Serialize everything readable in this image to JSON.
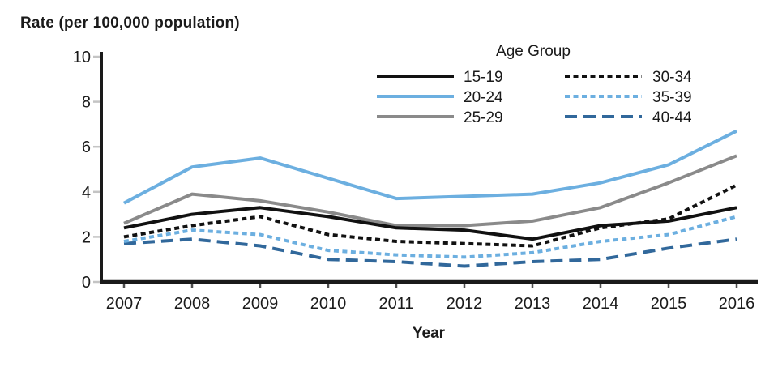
{
  "chart_data": {
    "type": "line",
    "title": "Rate (per 100,000 population)",
    "xlabel": "Year",
    "ylabel": "Rate (per 100,000 population)",
    "legend_title": "Age Group",
    "legend_position": "top-right, two columns, no box",
    "grid": false,
    "x": [
      2007,
      2008,
      2009,
      2010,
      2011,
      2012,
      2013,
      2014,
      2015,
      2016
    ],
    "yticks": [
      0,
      2,
      4,
      6,
      8,
      10
    ],
    "ylim": [
      0,
      10
    ],
    "series": [
      {
        "name": "15-19",
        "color": "#111111",
        "style": "solid",
        "values": [
          2.4,
          3.0,
          3.3,
          2.9,
          2.4,
          2.3,
          1.9,
          2.5,
          2.7,
          3.3
        ]
      },
      {
        "name": "20-24",
        "color": "#6CAFE0",
        "style": "solid",
        "values": [
          3.5,
          5.1,
          5.5,
          4.6,
          3.7,
          3.8,
          3.9,
          4.4,
          5.2,
          6.7
        ]
      },
      {
        "name": "25-29",
        "color": "#8A8A8A",
        "style": "solid",
        "values": [
          2.6,
          3.9,
          3.6,
          3.1,
          2.5,
          2.5,
          2.7,
          3.3,
          4.4,
          5.6
        ]
      },
      {
        "name": "30-34",
        "color": "#111111",
        "style": "dotted",
        "values": [
          2.0,
          2.5,
          2.9,
          2.1,
          1.8,
          1.7,
          1.6,
          2.4,
          2.8,
          4.3
        ]
      },
      {
        "name": "35-39",
        "color": "#6CAFE0",
        "style": "dotted",
        "values": [
          1.8,
          2.3,
          2.1,
          1.4,
          1.2,
          1.1,
          1.3,
          1.8,
          2.1,
          2.9
        ]
      },
      {
        "name": "40-44",
        "color": "#31689B",
        "style": "dashed",
        "values": [
          1.7,
          1.9,
          1.6,
          1.0,
          0.9,
          0.7,
          0.9,
          1.0,
          1.5,
          1.9
        ]
      }
    ]
  },
  "colors": {
    "axis": "#1a1a1a",
    "y_tick": "#c4c4c4",
    "x_tick": "#4d4d4d",
    "text": "#1a1a1a"
  }
}
